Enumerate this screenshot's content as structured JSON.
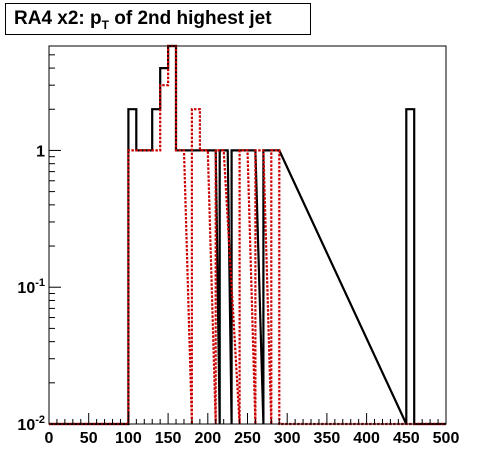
{
  "title": {
    "prefix": "RA4 x2: p",
    "subscript": "T",
    "suffix": " of 2nd highest jet"
  },
  "chart_data": {
    "type": "histogram",
    "title": "RA4 x2: p_T of 2nd highest jet",
    "xlabel": "",
    "ylabel": "",
    "xlim": [
      0,
      500
    ],
    "ylim": [
      0.01,
      5.8
    ],
    "log_y": true,
    "bin_width": 10,
    "x_ticks": [
      "0",
      "50",
      "100",
      "150",
      "200",
      "250",
      "300",
      "350",
      "400",
      "450",
      "500"
    ],
    "y_ticks": [
      {
        "base": "1",
        "exp": ""
      },
      {
        "base": "10",
        "exp": "-1"
      },
      {
        "base": "10",
        "exp": "-2"
      }
    ],
    "series": [
      {
        "color": "#000000",
        "style": "solid",
        "bins": [
          {
            "x": 100,
            "y": 2
          },
          {
            "x": 110,
            "y": 1
          },
          {
            "x": 120,
            "y": 1
          },
          {
            "x": 130,
            "y": 2
          },
          {
            "x": 140,
            "y": 4
          },
          {
            "x": 150,
            "y": 6
          },
          {
            "x": 160,
            "y": 1
          },
          {
            "x": 170,
            "y": 1
          },
          {
            "x": 180,
            "y": 1
          },
          {
            "x": 190,
            "y": 1
          },
          {
            "x": 200,
            "y": 1
          },
          {
            "x": 215,
            "y": 1
          },
          {
            "x": 230,
            "y": 1
          },
          {
            "x": 240,
            "y": 1
          },
          {
            "x": 250,
            "y": 1
          },
          {
            "x": 270,
            "y": 1
          },
          {
            "x": 280,
            "y": 1
          },
          {
            "x": 450,
            "y": 2
          }
        ]
      },
      {
        "color": "#cc0000",
        "style": "dotted",
        "bins": [
          {
            "x": 100,
            "y": 1
          },
          {
            "x": 110,
            "y": 1
          },
          {
            "x": 120,
            "y": 1
          },
          {
            "x": 130,
            "y": 1
          },
          {
            "x": 140,
            "y": 3
          },
          {
            "x": 150,
            "y": 6
          },
          {
            "x": 160,
            "y": 1
          },
          {
            "x": 180,
            "y": 2
          },
          {
            "x": 190,
            "y": 1
          },
          {
            "x": 210,
            "y": 1
          },
          {
            "x": 240,
            "y": 1
          },
          {
            "x": 260,
            "y": 1
          },
          {
            "x": 280,
            "y": 1
          }
        ]
      }
    ],
    "grid": false,
    "legend": "none"
  }
}
